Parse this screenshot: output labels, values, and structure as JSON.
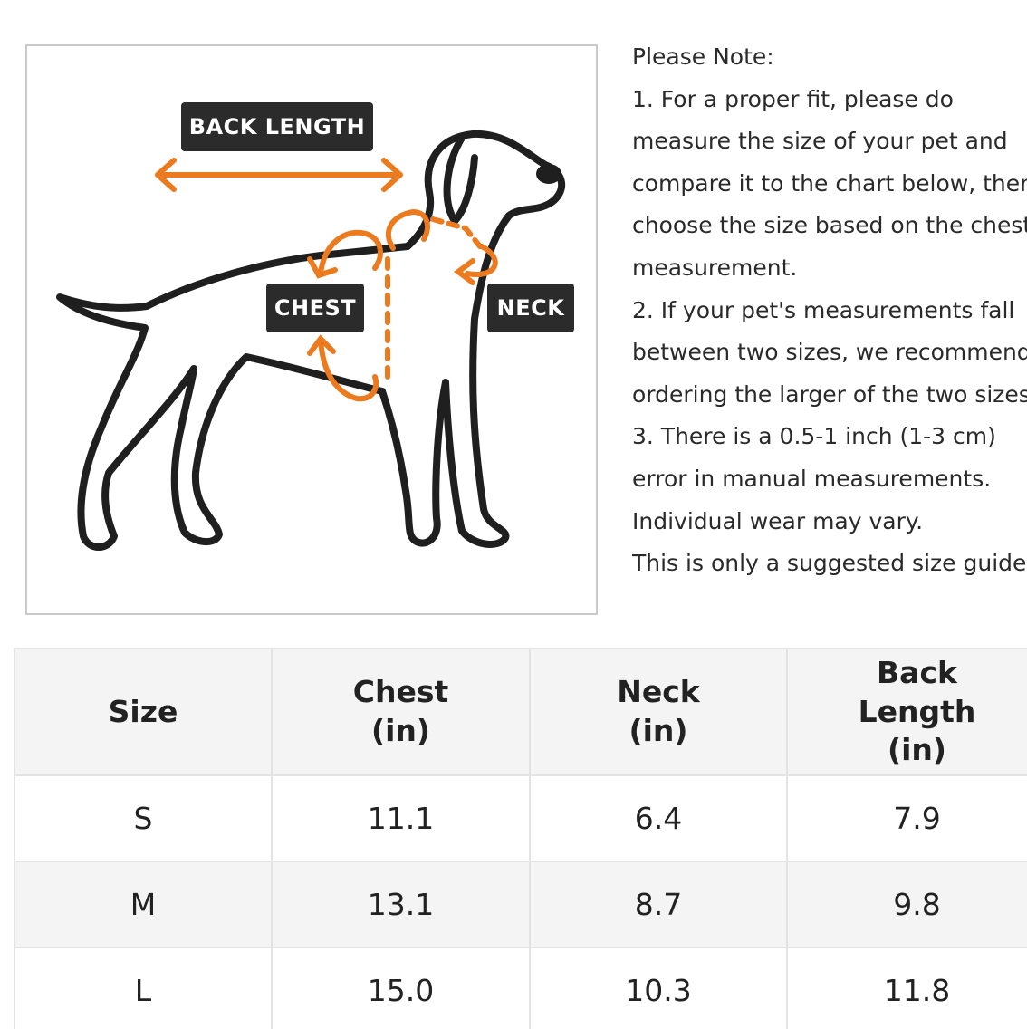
{
  "diagram": {
    "labels": {
      "back_length": "BACK LENGTH",
      "chest": "CHEST",
      "neck": "NECK"
    },
    "accent_color": "#ec7a1e",
    "outline_color": "#1f1f1f",
    "tag_color": "#2b2b2b",
    "subject_icon": "dog-silhouette-icon"
  },
  "note": {
    "lines": [
      "Please Note:",
      "1. For a proper fit, please do",
      "measure the size of your pet and",
      "compare it to the chart below, then",
      "choose the size based on the chest",
      "measurement.",
      "2. If your pet's measurements fall",
      "between two sizes, we recommend",
      "ordering the larger of the two sizes.",
      "3. There is a 0.5-1 inch (1-3 cm)",
      "error in manual measurements.",
      "Individual wear may vary.",
      "This is only a suggested size guide."
    ]
  },
  "table": {
    "headers": [
      {
        "line1": "Size",
        "line2": "",
        "line3": ""
      },
      {
        "line1": "Chest",
        "line2": "(in)",
        "line3": ""
      },
      {
        "line1": "Neck",
        "line2": "(in)",
        "line3": ""
      },
      {
        "line1": "Back",
        "line2": "Length",
        "line3": "(in)"
      }
    ],
    "rows": [
      [
        "S",
        "11.1",
        "6.4",
        "7.9"
      ],
      [
        "M",
        "13.1",
        "8.7",
        "9.8"
      ],
      [
        "L",
        "15.0",
        "10.3",
        "11.8"
      ]
    ]
  }
}
